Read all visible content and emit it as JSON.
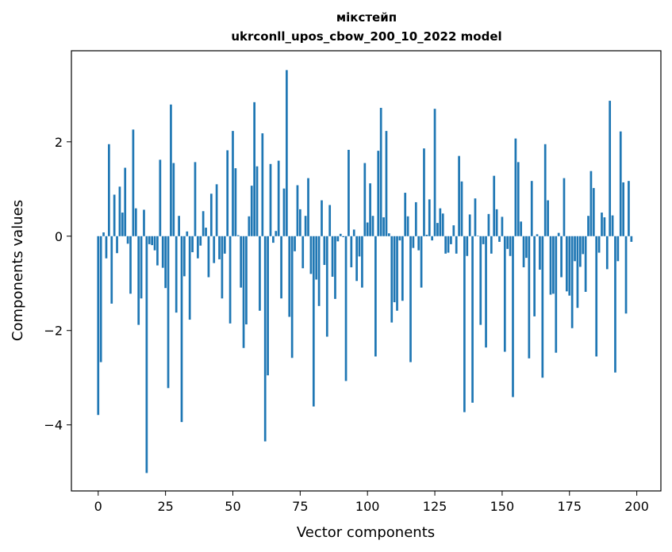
{
  "chart_data": {
    "type": "bar",
    "title": "мікстейп",
    "subtitle": "ukrconll_upos_cbow_200_10_2022 model",
    "xlabel": "Vector components",
    "ylabel": "Components values",
    "xlim": [
      -9.95,
      208.95
    ],
    "ylim": [
      -5.4,
      3.93
    ],
    "xticks": [
      0,
      25,
      50,
      75,
      100,
      125,
      150,
      175,
      200
    ],
    "xtick_labels": [
      "0",
      "25",
      "50",
      "75",
      "100",
      "125",
      "150",
      "175",
      "200"
    ],
    "yticks": [
      -4,
      -2,
      0,
      2
    ],
    "ytick_labels": [
      "−4",
      "−2",
      "0",
      "2"
    ],
    "grid": false,
    "bar_color": "#1f77b4",
    "values": [
      -3.79,
      -2.67,
      0.08,
      -0.47,
      1.95,
      -1.43,
      0.88,
      -0.36,
      1.05,
      0.5,
      1.45,
      -0.16,
      -1.22,
      2.26,
      0.59,
      -1.88,
      -1.32,
      0.56,
      -5.02,
      -0.17,
      -0.19,
      -0.3,
      -0.62,
      1.62,
      -0.67,
      -1.1,
      -3.22,
      2.79,
      1.55,
      -1.62,
      0.43,
      -3.94,
      -0.85,
      0.1,
      -1.77,
      -0.34,
      1.57,
      -0.47,
      -0.2,
      0.53,
      0.18,
      -0.87,
      0.9,
      -0.57,
      1.1,
      -0.49,
      -1.32,
      -0.37,
      1.82,
      -1.85,
      2.23,
      1.44,
      0.02,
      -1.09,
      -2.37,
      -1.87,
      0.42,
      1.07,
      2.84,
      1.48,
      -1.58,
      2.18,
      -4.35,
      -2.95,
      1.53,
      -0.14,
      0.11,
      1.6,
      -1.32,
      1.01,
      3.52,
      -1.71,
      -2.58,
      -0.32,
      1.08,
      0.57,
      -0.68,
      0.43,
      1.23,
      -0.8,
      -3.61,
      -0.92,
      -1.48,
      0.76,
      -0.61,
      -2.13,
      0.66,
      -0.86,
      -1.33,
      -0.11,
      0.05,
      -0.02,
      -3.07,
      1.83,
      -0.66,
      0.14,
      -0.95,
      -0.43,
      -1.09,
      1.55,
      0.29,
      1.12,
      0.43,
      -2.55,
      1.81,
      2.72,
      0.4,
      2.23,
      0.06,
      -1.83,
      -1.4,
      -1.58,
      -0.09,
      -1.37,
      0.92,
      0.42,
      -2.67,
      -0.25,
      0.72,
      -0.3,
      -1.09,
      1.86,
      0.03,
      0.78,
      -0.09,
      2.7,
      0.28,
      0.59,
      0.48,
      -0.37,
      -0.35,
      -0.17,
      0.23,
      -0.37,
      1.7,
      1.16,
      -3.73,
      -0.42,
      0.46,
      -3.53,
      0.8,
      0.01,
      -1.88,
      -0.17,
      -2.36,
      0.47,
      -0.37,
      1.28,
      0.57,
      -0.12,
      0.41,
      -2.45,
      -0.27,
      -0.42,
      -3.41,
      2.07,
      1.57,
      0.31,
      -0.66,
      -0.46,
      -2.59,
      1.17,
      -1.7,
      0.04,
      -0.71,
      -3.0,
      1.95,
      0.76,
      -1.24,
      -1.22,
      -2.47,
      0.07,
      -0.87,
      1.23,
      -1.17,
      -1.26,
      -1.95,
      -0.53,
      -1.52,
      -0.65,
      -0.38,
      -1.18,
      0.43,
      1.38,
      1.02,
      -2.55,
      -0.35,
      0.5,
      0.4,
      -0.7,
      2.87,
      0.44,
      -2.89,
      -0.53,
      2.22,
      1.14,
      -1.64,
      1.17,
      -0.12
    ]
  }
}
